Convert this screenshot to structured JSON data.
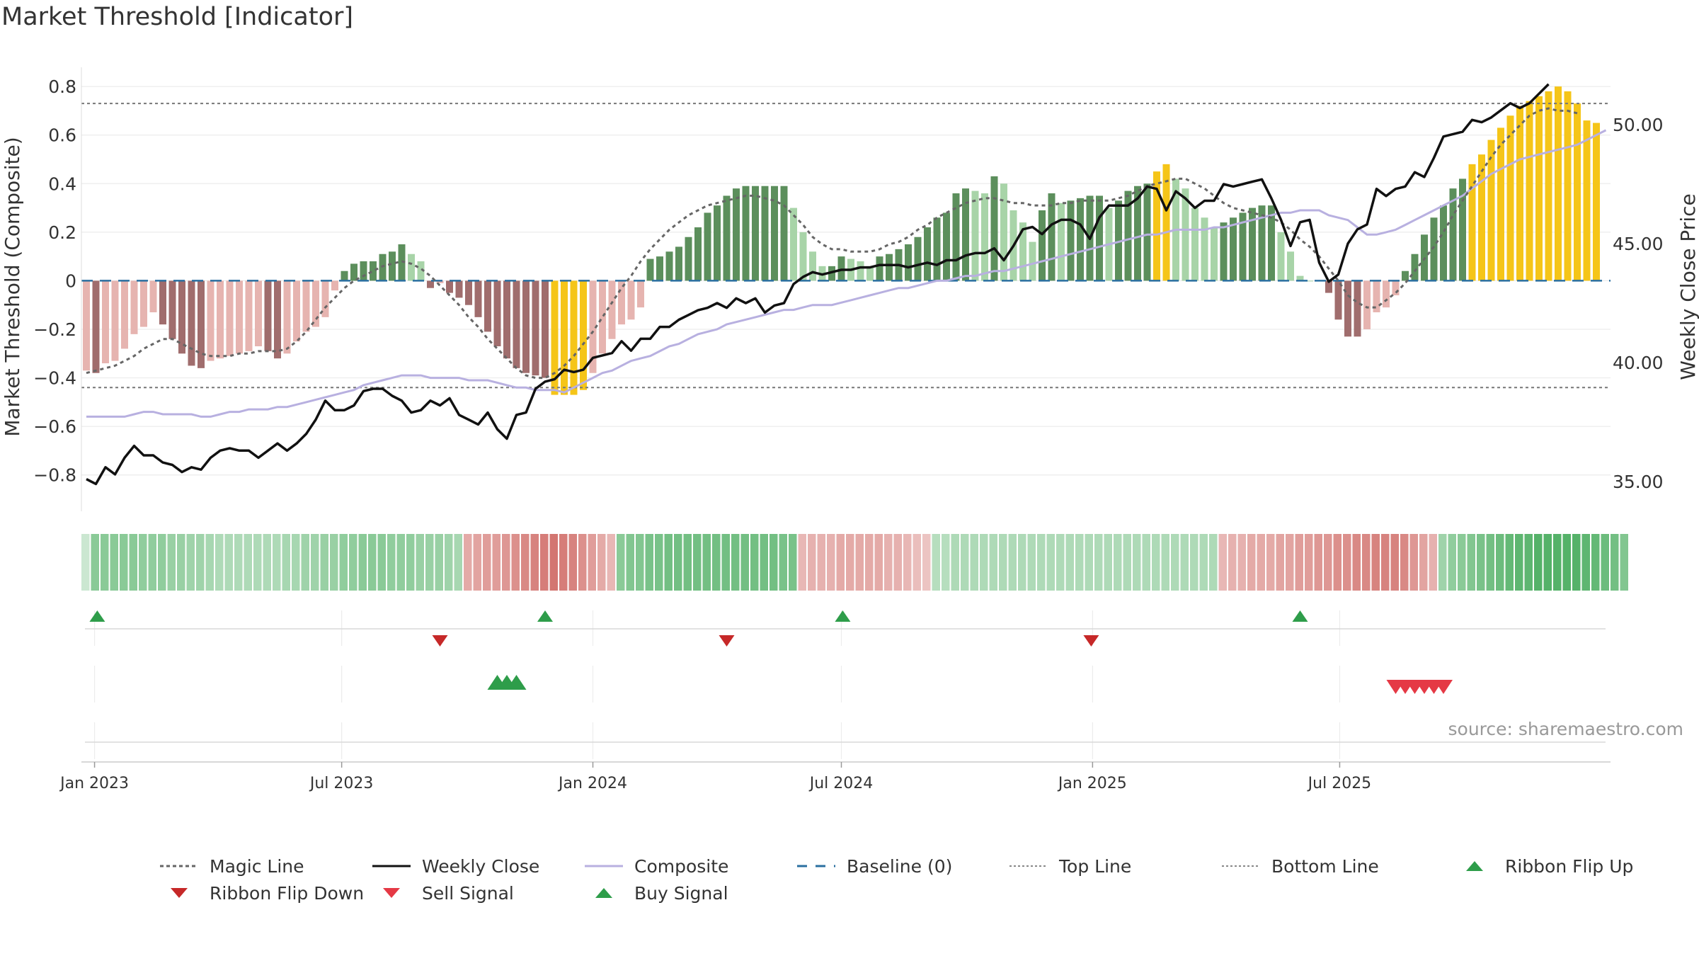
{
  "title": "Market Threshold [Indicator]",
  "source_note": "source: sharemaestro.com",
  "colors": {
    "bar_pos_strong": "#5c8f5c",
    "bar_pos_weak": "#a8d4a8",
    "bar_neg_strong": "#a06d6d",
    "bar_neg_weak": "#e6b4b0",
    "bar_extreme": "#f5c518",
    "weekly_close": "#111111",
    "composite": "#b8b0e0",
    "magic_line": "#666666",
    "baseline": "#2a6fa0",
    "threshold_lines": "#777777",
    "signal_up": "#2e9d4a",
    "signal_down": "#d63a3a"
  },
  "chart_data": {
    "type": "bar",
    "title": "Market Threshold [Indicator]",
    "ylabel": "Market Threshold (Composite)",
    "y2label": "Weekly Close Price",
    "ylim": [
      -0.9,
      0.85
    ],
    "y2lim": [
      33.7,
      53.7
    ],
    "yticks": [
      "0.8",
      "0.6",
      "0.4",
      "0.2",
      "0",
      "−0.2",
      "−0.4",
      "−0.6",
      "−0.8"
    ],
    "y2ticks": [
      "50.00",
      "45.00",
      "40.00",
      "35.00"
    ],
    "x_start": "2022-12-26",
    "x_ticks": [
      {
        "label": "Jan 2023",
        "date": "2023-01-01"
      },
      {
        "label": "Jul 2023",
        "date": "2023-07-01"
      },
      {
        "label": "Jan 2024",
        "date": "2024-01-01"
      },
      {
        "label": "Jul 2024",
        "date": "2024-07-01"
      },
      {
        "label": "Jan 2025",
        "date": "2025-01-01"
      },
      {
        "label": "Jul 2025",
        "date": "2025-07-01"
      }
    ],
    "grid": true,
    "top_line": 0.73,
    "bottom_line": -0.44,
    "baseline": 0,
    "bars": [
      -0.37,
      -0.38,
      -0.34,
      -0.33,
      -0.28,
      -0.22,
      -0.19,
      -0.13,
      -0.18,
      -0.24,
      -0.3,
      -0.35,
      -0.36,
      -0.33,
      -0.32,
      -0.31,
      -0.3,
      -0.29,
      -0.27,
      -0.29,
      -0.32,
      -0.3,
      -0.25,
      -0.21,
      -0.19,
      -0.15,
      -0.04,
      0.04,
      0.07,
      0.08,
      0.08,
      0.11,
      0.12,
      0.15,
      0.11,
      0.08,
      -0.03,
      -0.01,
      -0.05,
      -0.07,
      -0.1,
      -0.15,
      -0.21,
      -0.27,
      -0.32,
      -0.36,
      -0.38,
      -0.39,
      -0.4,
      -0.47,
      -0.47,
      -0.47,
      -0.45,
      -0.38,
      -0.3,
      -0.24,
      -0.18,
      -0.16,
      -0.11,
      0.09,
      0.1,
      0.12,
      0.14,
      0.18,
      0.22,
      0.28,
      0.31,
      0.35,
      0.38,
      0.39,
      0.39,
      0.39,
      0.39,
      0.39,
      0.3,
      0.2,
      0.12,
      0.06,
      0.06,
      0.1,
      0.09,
      0.08,
      0.06,
      0.1,
      0.11,
      0.13,
      0.15,
      0.18,
      0.22,
      0.26,
      0.28,
      0.36,
      0.38,
      0.37,
      0.36,
      0.43,
      0.4,
      0.29,
      0.24,
      0.16,
      0.29,
      0.36,
      0.32,
      0.33,
      0.34,
      0.35,
      0.35,
      0.3,
      0.33,
      0.37,
      0.39,
      0.4,
      0.45,
      0.48,
      0.42,
      0.38,
      0.3,
      0.26,
      0.22,
      0.24,
      0.26,
      0.28,
      0.3,
      0.31,
      0.31,
      0.2,
      0.12,
      0.02,
      0.0,
      0.0,
      -0.05,
      -0.16,
      -0.23,
      -0.23,
      -0.2,
      -0.13,
      -0.11,
      -0.06,
      0.04,
      0.11,
      0.19,
      0.26,
      0.31,
      0.38,
      0.42,
      0.48,
      0.52,
      0.58,
      0.63,
      0.68,
      0.72,
      0.74,
      0.76,
      0.78,
      0.8,
      0.78,
      0.73,
      0.66,
      0.65
    ],
    "weekly_close": [
      35.1,
      34.9,
      35.6,
      35.3,
      36.0,
      36.5,
      36.1,
      36.1,
      35.8,
      35.7,
      35.4,
      35.6,
      35.5,
      36.0,
      36.3,
      36.4,
      36.3,
      36.3,
      36.0,
      36.3,
      36.6,
      36.3,
      36.6,
      37.0,
      37.6,
      38.4,
      38.0,
      38.0,
      38.2,
      38.8,
      38.9,
      38.9,
      38.6,
      38.4,
      37.9,
      38.0,
      38.4,
      38.2,
      38.5,
      37.8,
      37.6,
      37.4,
      37.9,
      37.2,
      36.8,
      37.8,
      37.9,
      38.9,
      39.2,
      39.3,
      39.7,
      39.6,
      39.7,
      40.2,
      40.3,
      40.4,
      40.9,
      40.5,
      41.0,
      41.0,
      41.5,
      41.5,
      41.8,
      42.0,
      42.2,
      42.3,
      42.5,
      42.3,
      42.7,
      42.5,
      42.7,
      42.1,
      42.4,
      42.5,
      43.3,
      43.6,
      43.8,
      43.7,
      43.8,
      43.9,
      43.9,
      44.0,
      44.0,
      44.1,
      44.1,
      44.1,
      44.0,
      44.1,
      44.2,
      44.1,
      44.3,
      44.3,
      44.5,
      44.6,
      44.6,
      44.8,
      44.3,
      44.9,
      45.6,
      45.7,
      45.4,
      45.8,
      46.0,
      46.0,
      45.8,
      45.2,
      46.1,
      46.6,
      46.6,
      46.6,
      46.9,
      47.4,
      47.3,
      46.4,
      47.2,
      46.9,
      46.5,
      46.8,
      46.8,
      47.5,
      47.4,
      47.5,
      47.6,
      47.7,
      46.9,
      46.0,
      44.9,
      45.9,
      46.0,
      44.2,
      43.4,
      43.7,
      45.0,
      45.6,
      45.8,
      47.3,
      47.0,
      47.3,
      47.4,
      48.0,
      47.8,
      48.6,
      49.5,
      49.6,
      49.7,
      50.2,
      50.1,
      50.3,
      50.6,
      50.9,
      50.7,
      50.9,
      51.3,
      51.7
    ],
    "magic_line": [
      -0.38,
      -0.37,
      -0.36,
      -0.35,
      -0.33,
      -0.31,
      -0.28,
      -0.26,
      -0.24,
      -0.24,
      -0.26,
      -0.28,
      -0.3,
      -0.31,
      -0.31,
      -0.31,
      -0.3,
      -0.3,
      -0.29,
      -0.29,
      -0.29,
      -0.28,
      -0.25,
      -0.21,
      -0.16,
      -0.11,
      -0.07,
      -0.03,
      0.0,
      0.02,
      0.04,
      0.06,
      0.07,
      0.08,
      0.07,
      0.05,
      0.02,
      -0.02,
      -0.06,
      -0.1,
      -0.15,
      -0.19,
      -0.24,
      -0.28,
      -0.32,
      -0.36,
      -0.39,
      -0.4,
      -0.4,
      -0.38,
      -0.35,
      -0.31,
      -0.26,
      -0.21,
      -0.15,
      -0.09,
      -0.03,
      0.02,
      0.08,
      0.13,
      0.17,
      0.21,
      0.24,
      0.27,
      0.29,
      0.31,
      0.32,
      0.33,
      0.34,
      0.35,
      0.35,
      0.34,
      0.33,
      0.31,
      0.27,
      0.23,
      0.18,
      0.15,
      0.13,
      0.13,
      0.12,
      0.12,
      0.12,
      0.13,
      0.15,
      0.16,
      0.18,
      0.21,
      0.23,
      0.26,
      0.28,
      0.3,
      0.32,
      0.33,
      0.34,
      0.34,
      0.33,
      0.32,
      0.32,
      0.31,
      0.31,
      0.31,
      0.32,
      0.32,
      0.33,
      0.33,
      0.33,
      0.33,
      0.34,
      0.35,
      0.37,
      0.39,
      0.4,
      0.41,
      0.42,
      0.42,
      0.4,
      0.38,
      0.35,
      0.32,
      0.3,
      0.29,
      0.28,
      0.27,
      0.26,
      0.24,
      0.21,
      0.17,
      0.14,
      0.1,
      0.05,
      0.0,
      -0.06,
      -0.09,
      -0.11,
      -0.11,
      -0.08,
      -0.05,
      -0.01,
      0.04,
      0.09,
      0.14,
      0.2,
      0.27,
      0.33,
      0.39,
      0.45,
      0.51,
      0.56,
      0.6,
      0.64,
      0.68,
      0.7,
      0.71,
      0.7,
      0.7,
      0.69
    ],
    "composite": [
      -0.56,
      -0.56,
      -0.56,
      -0.56,
      -0.56,
      -0.55,
      -0.54,
      -0.54,
      -0.55,
      -0.55,
      -0.55,
      -0.55,
      -0.56,
      -0.56,
      -0.55,
      -0.54,
      -0.54,
      -0.53,
      -0.53,
      -0.53,
      -0.52,
      -0.52,
      -0.51,
      -0.5,
      -0.49,
      -0.48,
      -0.47,
      -0.46,
      -0.45,
      -0.43,
      -0.42,
      -0.41,
      -0.4,
      -0.39,
      -0.39,
      -0.39,
      -0.4,
      -0.4,
      -0.4,
      -0.4,
      -0.41,
      -0.41,
      -0.41,
      -0.42,
      -0.43,
      -0.44,
      -0.44,
      -0.45,
      -0.45,
      -0.45,
      -0.46,
      -0.44,
      -0.42,
      -0.4,
      -0.38,
      -0.37,
      -0.35,
      -0.33,
      -0.32,
      -0.31,
      -0.29,
      -0.27,
      -0.26,
      -0.24,
      -0.22,
      -0.21,
      -0.2,
      -0.18,
      -0.17,
      -0.16,
      -0.15,
      -0.14,
      -0.13,
      -0.12,
      -0.12,
      -0.11,
      -0.1,
      -0.1,
      -0.1,
      -0.09,
      -0.08,
      -0.07,
      -0.06,
      -0.05,
      -0.04,
      -0.03,
      -0.03,
      -0.02,
      -0.01,
      0.0,
      0.0,
      0.01,
      0.02,
      0.02,
      0.03,
      0.04,
      0.04,
      0.05,
      0.06,
      0.07,
      0.08,
      0.09,
      0.1,
      0.11,
      0.12,
      0.13,
      0.14,
      0.15,
      0.16,
      0.17,
      0.18,
      0.19,
      0.19,
      0.2,
      0.21,
      0.21,
      0.21,
      0.21,
      0.22,
      0.22,
      0.23,
      0.24,
      0.25,
      0.26,
      0.27,
      0.28,
      0.28,
      0.29,
      0.29,
      0.29,
      0.27,
      0.26,
      0.25,
      0.22,
      0.19,
      0.19,
      0.2,
      0.21,
      0.23,
      0.25,
      0.27,
      0.29,
      0.31,
      0.33,
      0.35,
      0.38,
      0.41,
      0.44,
      0.46,
      0.48,
      0.5,
      0.51,
      0.52,
      0.53,
      0.54,
      0.55,
      0.56,
      0.58,
      0.6,
      0.62
    ],
    "ribbon": [
      0.1,
      0.55,
      0.55,
      0.55,
      0.55,
      0.55,
      0.5,
      0.5,
      0.5,
      0.45,
      0.45,
      0.4,
      0.4,
      0.35,
      0.3,
      0.3,
      0.3,
      0.3,
      0.3,
      0.3,
      0.3,
      0.35,
      0.35,
      0.4,
      0.4,
      0.45,
      0.45,
      0.5,
      0.5,
      0.55,
      0.55,
      0.55,
      0.5,
      0.5,
      0.5,
      0.45,
      0.45,
      0.45,
      0.4,
      0.35,
      -0.4,
      -0.45,
      -0.5,
      -0.5,
      -0.55,
      -0.6,
      -0.65,
      -0.7,
      -0.75,
      -0.8,
      -0.75,
      -0.7,
      -0.6,
      -0.5,
      -0.4,
      -0.3,
      0.55,
      0.6,
      0.6,
      0.65,
      0.65,
      0.7,
      0.7,
      0.7,
      0.7,
      0.7,
      0.7,
      0.7,
      0.7,
      0.7,
      0.7,
      0.7,
      0.7,
      0.65,
      0.65,
      -0.3,
      -0.35,
      -0.35,
      -0.35,
      -0.4,
      -0.4,
      -0.4,
      -0.4,
      -0.4,
      -0.35,
      -0.35,
      -0.3,
      -0.25,
      -0.2,
      0.25,
      0.25,
      0.3,
      0.3,
      0.3,
      0.3,
      0.3,
      0.3,
      0.3,
      0.3,
      0.3,
      0.3,
      0.3,
      0.3,
      0.3,
      0.3,
      0.3,
      0.3,
      0.3,
      0.3,
      0.3,
      0.3,
      0.3,
      0.3,
      0.3,
      0.3,
      0.3,
      0.3,
      0.3,
      0.3,
      -0.3,
      -0.35,
      -0.35,
      -0.4,
      -0.4,
      -0.4,
      -0.45,
      -0.45,
      -0.5,
      -0.5,
      -0.55,
      -0.55,
      -0.6,
      -0.6,
      -0.65,
      -0.65,
      -0.7,
      -0.7,
      -0.7,
      -0.65,
      -0.55,
      -0.45,
      -0.35,
      0.4,
      0.5,
      0.55,
      0.6,
      0.65,
      0.7,
      0.75,
      0.8,
      0.85,
      0.85,
      0.9,
      0.9,
      0.9,
      0.9,
      0.9,
      0.85,
      0.8,
      0.75,
      0.7,
      0.6
    ],
    "signals": [
      {
        "row": "Ribbon Flip Up",
        "date": "2023-01-03",
        "marker": "up"
      },
      {
        "row": "Ribbon Flip Up",
        "date": "2023-11-27",
        "marker": "up"
      },
      {
        "row": "Ribbon Flip Up",
        "date": "2024-07-02",
        "marker": "up"
      },
      {
        "row": "Ribbon Flip Up",
        "date": "2025-06-02",
        "marker": "up"
      },
      {
        "row": "Ribbon Flip Down",
        "date": "2023-09-11",
        "marker": "down"
      },
      {
        "row": "Ribbon Flip Down",
        "date": "2024-04-08",
        "marker": "down"
      },
      {
        "row": "Ribbon Flip Down",
        "date": "2024-12-31",
        "marker": "down"
      },
      {
        "row": "Buy Signal",
        "date": "2023-10-23",
        "marker": "up"
      },
      {
        "row": "Buy Signal",
        "date": "2023-10-30",
        "marker": "up"
      },
      {
        "row": "Buy Signal",
        "date": "2023-11-06",
        "marker": "up"
      },
      {
        "row": "Sell Signal",
        "date": "2025-08-11",
        "marker": "down"
      },
      {
        "row": "Sell Signal",
        "date": "2025-08-18",
        "marker": "down"
      },
      {
        "row": "Sell Signal",
        "date": "2025-08-25",
        "marker": "down"
      },
      {
        "row": "Sell Signal",
        "date": "2025-09-01",
        "marker": "down"
      },
      {
        "row": "Sell Signal",
        "date": "2025-09-08",
        "marker": "down"
      },
      {
        "row": "Sell Signal",
        "date": "2025-09-15",
        "marker": "down"
      }
    ]
  },
  "legend": [
    {
      "label": "Magic Line",
      "kind": "dotted-line",
      "color": "#666666"
    },
    {
      "label": "Weekly Close",
      "kind": "solid-line",
      "color": "#111111"
    },
    {
      "label": "Composite",
      "kind": "solid-line",
      "color": "#b8b0e0"
    },
    {
      "label": "Baseline (0)",
      "kind": "dashed-line",
      "color": "#2a6fa0"
    },
    {
      "label": "Top Line",
      "kind": "fine-dotted-line",
      "color": "#888888"
    },
    {
      "label": "Bottom Line",
      "kind": "fine-dotted-line",
      "color": "#888888"
    },
    {
      "label": "Ribbon Flip Up",
      "kind": "triangle-up",
      "color": "#2e9d4a"
    },
    {
      "label": "Ribbon Flip Down",
      "kind": "triangle-down",
      "color": "#c62828"
    },
    {
      "label": "Sell Signal",
      "kind": "triangle-down",
      "color": "#e53945"
    },
    {
      "label": "Buy Signal",
      "kind": "triangle-up",
      "color": "#2e9d4a"
    }
  ]
}
